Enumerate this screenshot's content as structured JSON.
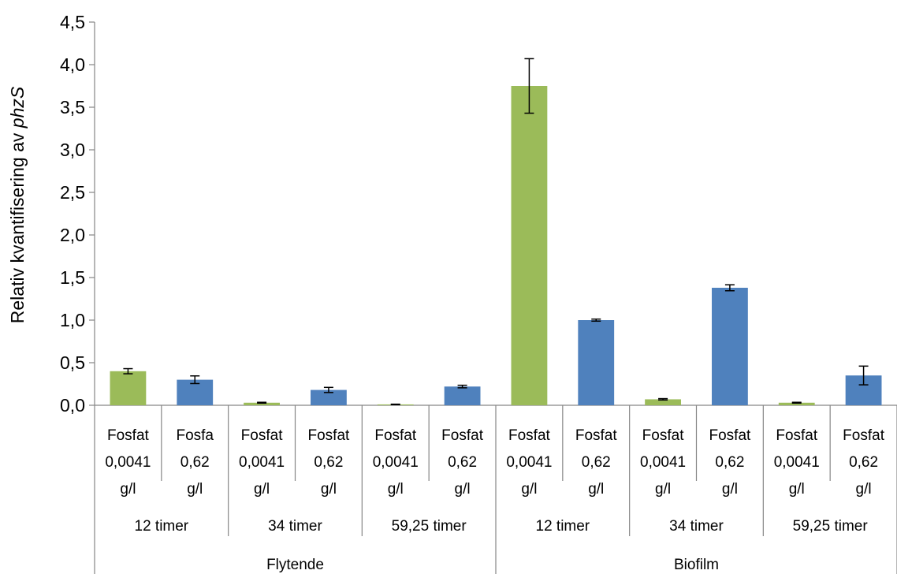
{
  "chart_data": {
    "type": "bar",
    "ylabel": "Relativ kvantifisering av ",
    "ylabel_italic": "phzS",
    "ylim": [
      0,
      4.5
    ],
    "ytick_labels": [
      "0,0",
      "0,5",
      "1,0",
      "1,5",
      "2,0",
      "2,5",
      "3,0",
      "3,5",
      "4,0",
      "4,5"
    ],
    "grid": false,
    "colors": {
      "low_phosphate": "#9bbb59",
      "high_phosphate": "#4f81bd"
    },
    "groups": [
      {
        "label": "Flytende",
        "subgroups": [
          {
            "label": "12 timer",
            "bars": [
              {
                "lines": [
                  "Fosfat",
                  "0,0041",
                  "g/l"
                ],
                "value": 0.4,
                "error": 0.03,
                "color_key": "low_phosphate"
              },
              {
                "lines": [
                  "Fosfa",
                  "0,62",
                  "g/l"
                ],
                "value": 0.3,
                "error": 0.045,
                "color_key": "high_phosphate"
              }
            ]
          },
          {
            "label": "34 timer",
            "bars": [
              {
                "lines": [
                  "Fosfat",
                  "0,0041",
                  "g/l"
                ],
                "value": 0.03,
                "error": 0.005,
                "color_key": "low_phosphate"
              },
              {
                "lines": [
                  "Fosfat",
                  "0,62",
                  "g/l"
                ],
                "value": 0.18,
                "error": 0.03,
                "color_key": "high_phosphate"
              }
            ]
          },
          {
            "label": "59,25 timer",
            "bars": [
              {
                "lines": [
                  "Fosfat",
                  "0,0041",
                  "g/l"
                ],
                "value": 0.01,
                "error": 0.003,
                "color_key": "low_phosphate"
              },
              {
                "lines": [
                  "Fosfat",
                  "0,62",
                  "g/l"
                ],
                "value": 0.22,
                "error": 0.015,
                "color_key": "high_phosphate"
              }
            ]
          }
        ]
      },
      {
        "label": "Biofilm",
        "subgroups": [
          {
            "label": "12 timer",
            "bars": [
              {
                "lines": [
                  "Fosfat",
                  "0,0041",
                  "g/l"
                ],
                "value": 3.75,
                "error": 0.32,
                "color_key": "low_phosphate"
              },
              {
                "lines": [
                  "Fosfat",
                  "0,62",
                  "g/l"
                ],
                "value": 1.0,
                "error": 0.012,
                "color_key": "high_phosphate"
              }
            ]
          },
          {
            "label": "34 timer",
            "bars": [
              {
                "lines": [
                  "Fosfat",
                  "0,0041",
                  "g/l"
                ],
                "value": 0.07,
                "error": 0.008,
                "color_key": "low_phosphate"
              },
              {
                "lines": [
                  "Fosfat",
                  "0,62",
                  "g/l"
                ],
                "value": 1.38,
                "error": 0.035,
                "color_key": "high_phosphate"
              }
            ]
          },
          {
            "label": "59,25 timer",
            "bars": [
              {
                "lines": [
                  "Fosfat",
                  "0,0041",
                  "g/l"
                ],
                "value": 0.03,
                "error": 0.005,
                "color_key": "low_phosphate"
              },
              {
                "lines": [
                  "Fosfat",
                  "0,62",
                  "g/l"
                ],
                "value": 0.35,
                "error": 0.11,
                "color_key": "high_phosphate"
              }
            ]
          }
        ]
      }
    ]
  }
}
